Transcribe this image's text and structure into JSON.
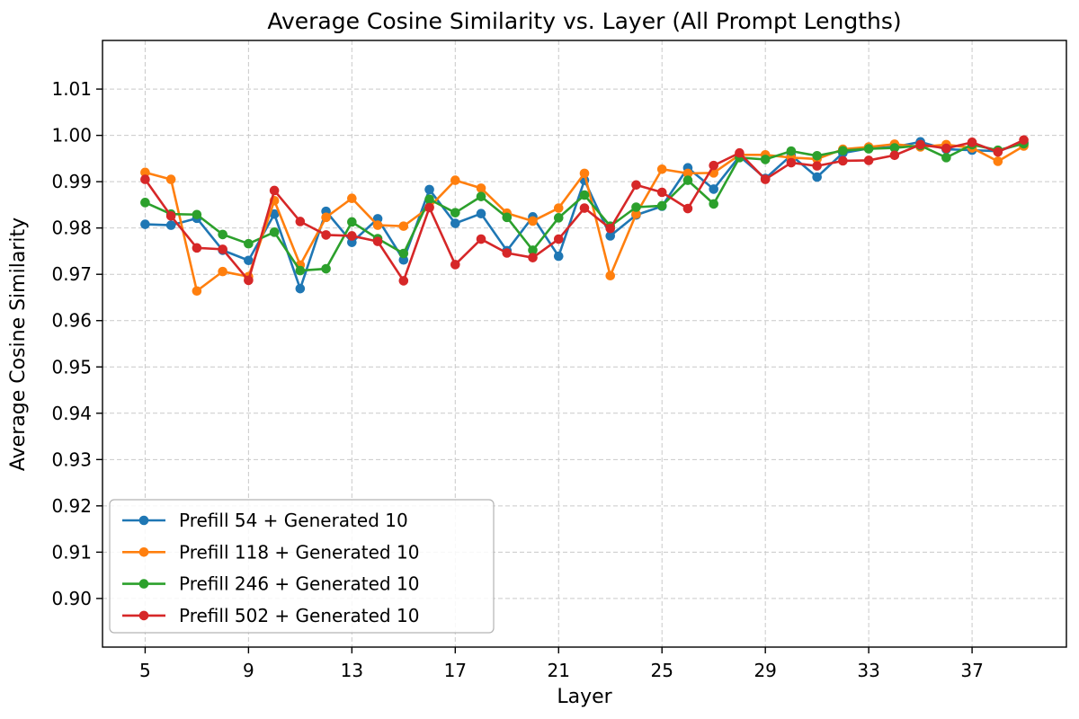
{
  "page": {
    "background": "#ffffff"
  },
  "chart_data": {
    "type": "line",
    "title": "Average Cosine Similarity vs. Layer (All Prompt Lengths)",
    "xlabel": "Layer",
    "ylabel": "Average Cosine Similarity",
    "marker": "o",
    "grid": true,
    "grid_color": "#c9c9c9",
    "axis_color": "#000000",
    "legend_position": "lower left",
    "legend_border_color": "#b3b3b3",
    "xlim": [
      3.35,
      40.65
    ],
    "ylim": [
      0.8895,
      1.0205
    ],
    "x_ticks": [
      5,
      9,
      13,
      17,
      21,
      25,
      29,
      33,
      37
    ],
    "y_ticks": [
      0.9,
      0.91,
      0.92,
      0.93,
      0.94,
      0.95,
      0.96,
      0.97,
      0.98,
      0.99,
      1.0,
      1.01
    ],
    "y_tick_labels": [
      "0.90",
      "0.91",
      "0.92",
      "0.93",
      "0.94",
      "0.95",
      "0.96",
      "0.97",
      "0.98",
      "0.99",
      "1.00",
      "1.01"
    ],
    "x": [
      5,
      6,
      7,
      8,
      9,
      10,
      11,
      12,
      13,
      14,
      15,
      16,
      17,
      18,
      19,
      20,
      21,
      22,
      23,
      24,
      25,
      26,
      27,
      28,
      29,
      30,
      31,
      32,
      33,
      34,
      35,
      36,
      37,
      38,
      39
    ],
    "series": [
      {
        "name": "Prefill 54 + Generated 10",
        "color": "#1f77b4",
        "values": [
          0.9808,
          0.9806,
          0.9821,
          0.9752,
          0.973,
          0.983,
          0.9669,
          0.9836,
          0.9769,
          0.982,
          0.9731,
          0.9883,
          0.981,
          0.9831,
          0.9751,
          0.9824,
          0.9739,
          0.9903,
          0.9783,
          0.9828,
          0.9847,
          0.993,
          0.9884,
          0.9955,
          0.9907,
          0.9957,
          0.991,
          0.9962,
          0.9972,
          0.9975,
          0.9986,
          0.997,
          0.9968,
          0.9966,
          0.9984
        ]
      },
      {
        "name": "Prefill 118 + Generated 10",
        "color": "#ff7f0e",
        "values": [
          0.992,
          0.9905,
          0.9664,
          0.9706,
          0.9695,
          0.9859,
          0.972,
          0.9823,
          0.9864,
          0.9806,
          0.9804,
          0.9845,
          0.9903,
          0.9886,
          0.9832,
          0.9815,
          0.9843,
          0.9918,
          0.9697,
          0.983,
          0.9927,
          0.9918,
          0.9919,
          0.9958,
          0.9958,
          0.9952,
          0.9949,
          0.997,
          0.9975,
          0.9981,
          0.9975,
          0.998,
          0.9973,
          0.9944,
          0.9977
        ]
      },
      {
        "name": "Prefill 246 + Generated 10",
        "color": "#2ca02c",
        "values": [
          0.9855,
          0.983,
          0.9829,
          0.9786,
          0.9766,
          0.9791,
          0.9708,
          0.9712,
          0.9813,
          0.9777,
          0.9745,
          0.9862,
          0.9833,
          0.9868,
          0.9823,
          0.9752,
          0.9822,
          0.9871,
          0.9804,
          0.9845,
          0.9848,
          0.9903,
          0.9852,
          0.9952,
          0.9948,
          0.9966,
          0.9956,
          0.9967,
          0.9971,
          0.9973,
          0.9978,
          0.9952,
          0.998,
          0.9968,
          0.9982
        ]
      },
      {
        "name": "Prefill 502 + Generated 10",
        "color": "#d62728",
        "values": [
          0.9905,
          0.9826,
          0.9757,
          0.9754,
          0.9687,
          0.9881,
          0.9814,
          0.9785,
          0.9783,
          0.9771,
          0.9686,
          0.9844,
          0.9721,
          0.9776,
          0.9746,
          0.9736,
          0.9776,
          0.9843,
          0.9799,
          0.9893,
          0.9877,
          0.9842,
          0.9935,
          0.9962,
          0.9905,
          0.9941,
          0.9934,
          0.9945,
          0.9946,
          0.9957,
          0.998,
          0.9972,
          0.9985,
          0.9964,
          0.999
        ]
      }
    ]
  }
}
